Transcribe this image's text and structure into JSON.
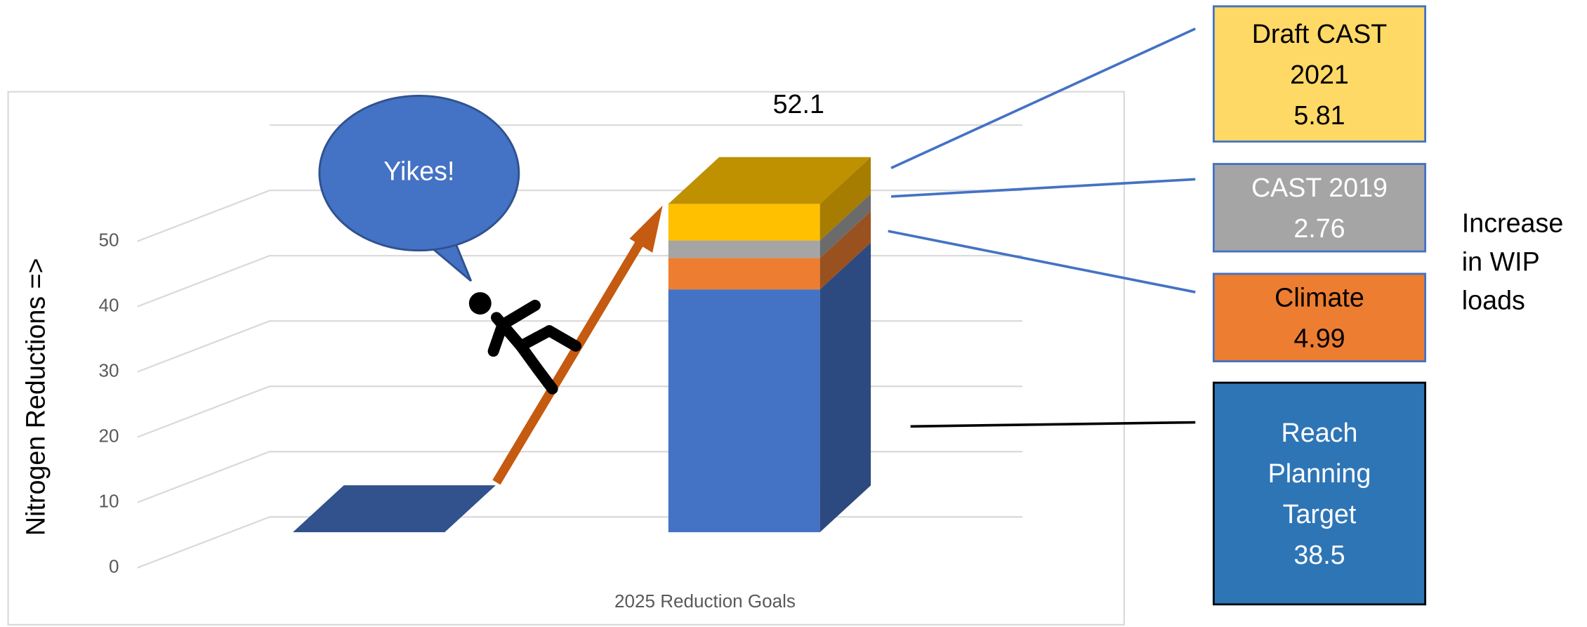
{
  "chart_data": {
    "type": "bar3d_stacked",
    "x_label": "2025 Reduction Goals",
    "y_label": "Nitrogen Reductions =>",
    "categories": [
      null,
      null
    ],
    "series": [
      {
        "name": "Reach Planning Target",
        "color": "#4472c4",
        "box_color": "#2e75b6",
        "values": [
          0,
          38.5
        ]
      },
      {
        "name": "Climate",
        "color": "#ed7d31",
        "box_color": "#ed7d31",
        "values": [
          0,
          4.99
        ]
      },
      {
        "name": "CAST 2019",
        "color": "#a5a5a5",
        "box_color": "#a5a5a5",
        "values": [
          0,
          2.76
        ]
      },
      {
        "name": "Draft CAST 2021",
        "color": "#ffc000",
        "box_color": "#ffd966",
        "values": [
          0,
          5.81
        ]
      }
    ],
    "total_label": 52.1,
    "ylim": [
      0,
      60
    ],
    "yticks": [
      0,
      10,
      20,
      30,
      40,
      50
    ],
    "grid": true,
    "annotations": {
      "bubble": "Yikes!",
      "side_note": "Increase in WIP loads"
    }
  }
}
